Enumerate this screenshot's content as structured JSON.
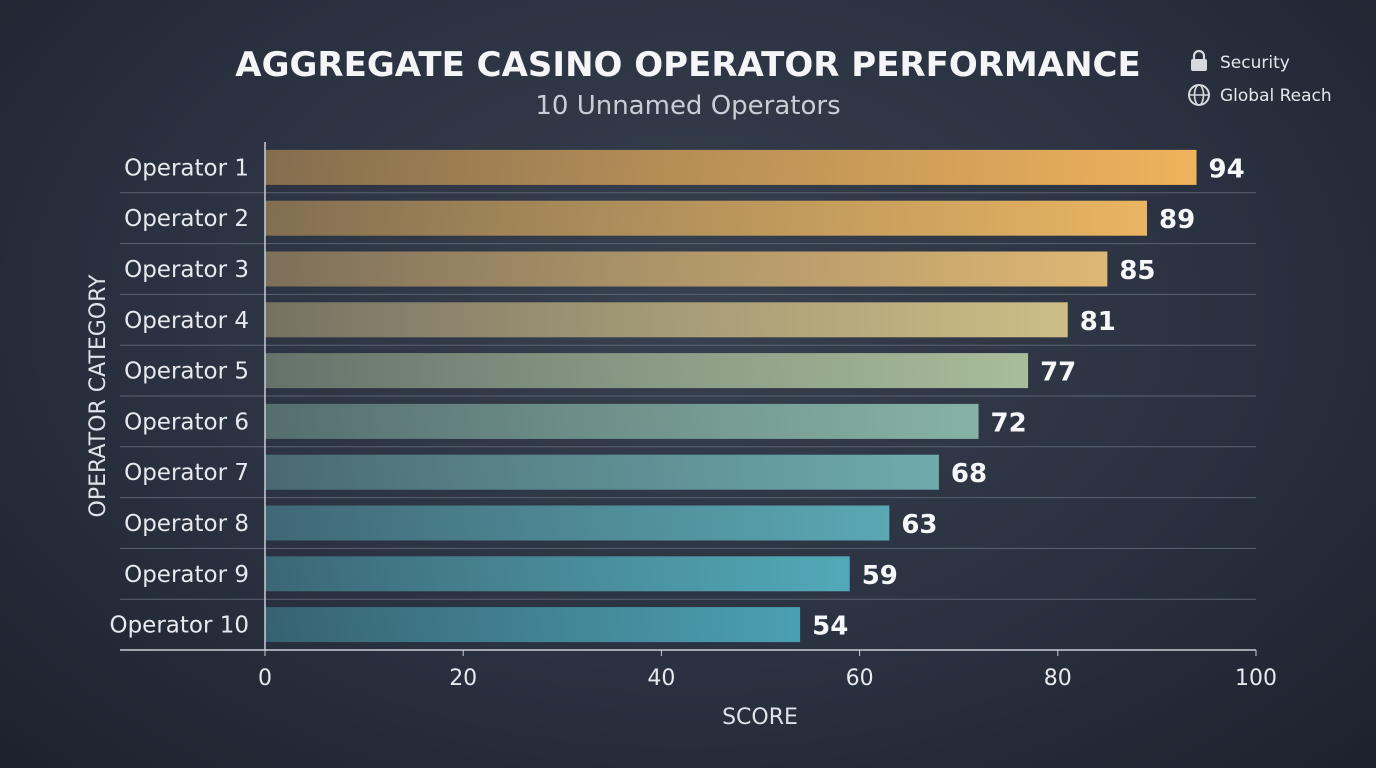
{
  "chart_data": {
    "type": "bar",
    "orientation": "horizontal",
    "title": "AGGREGATE CASINO OPERATOR PERFORMANCE",
    "subtitle": "10 Unnamed Operators",
    "xlabel": "SCORE",
    "ylabel": "OPERATOR CATEGORY",
    "xlim": [
      0,
      100
    ],
    "xticks": [
      0,
      20,
      40,
      60,
      80,
      100
    ],
    "categories": [
      "Operator 1",
      "Operator 2",
      "Operator 3",
      "Operator 4",
      "Operator 5",
      "Operator 6",
      "Operator 7",
      "Operator 8",
      "Operator 9",
      "Operator 10"
    ],
    "values": [
      94,
      89,
      85,
      81,
      77,
      72,
      68,
      63,
      59,
      54
    ],
    "bar_colors": [
      "#f0b35c",
      "#e9b562",
      "#deb774",
      "#cebd86",
      "#a8bd9a",
      "#86b3a5",
      "#6eabad",
      "#5aa8b4",
      "#52a9b8",
      "#4aa0b2"
    ],
    "grid": "horizontal separators",
    "legend_position": "top-right",
    "legend": [
      {
        "icon": "lock-icon",
        "label": "Security"
      },
      {
        "icon": "globe-icon",
        "label": "Global Reach"
      }
    ]
  }
}
